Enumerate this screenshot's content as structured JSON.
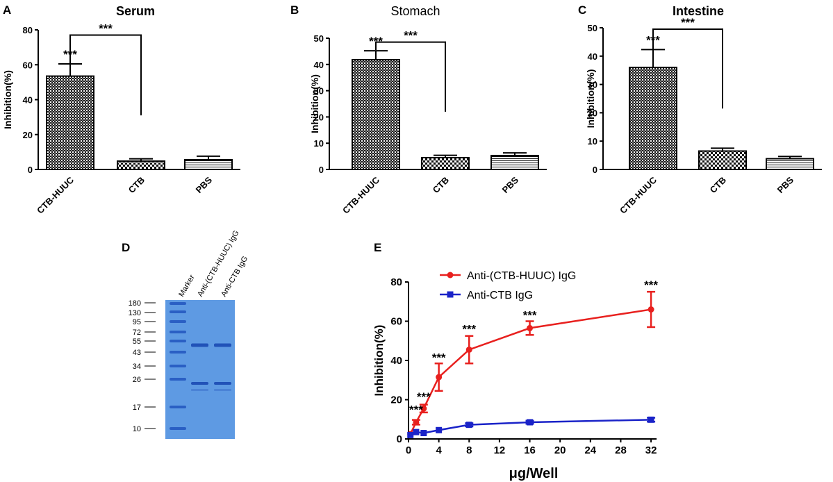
{
  "colors": {
    "red_series": "#e8201e",
    "blue_series": "#1a23c8",
    "gel_bg": "#5e9ae3",
    "band": "#2a5fc4"
  },
  "panel_letters": {
    "A": "A",
    "B": "B",
    "C": "C",
    "D": "D",
    "E": "E"
  },
  "chart_data": [
    {
      "panel": "A",
      "type": "bar",
      "title": "Serum",
      "title_bold": true,
      "ylabel": "Inhibition(%)",
      "xlabel": "",
      "ylim": [
        0,
        80
      ],
      "yticks": [
        0,
        20,
        40,
        60,
        80
      ],
      "categories": [
        "CTB-HUUC",
        "CTB",
        "PBS"
      ],
      "values": [
        53.5,
        4.8,
        5.6
      ],
      "errors": [
        7,
        1.3,
        2.0
      ],
      "patterns": [
        "crosshatch",
        "checker",
        "hlines"
      ],
      "annotations": [
        {
          "text": "***",
          "type": "above-bar",
          "category": "CTB-HUUC"
        },
        {
          "text": "***",
          "type": "bracket",
          "from": "CTB-HUUC",
          "to": "CTB",
          "start_y": 60.5,
          "top_y": 77,
          "end_y": 31
        }
      ]
    },
    {
      "panel": "B",
      "type": "bar",
      "title": "Stomach",
      "title_bold": false,
      "ylabel": "Inhibition(%)",
      "xlabel": "",
      "ylim": [
        0,
        50
      ],
      "yticks": [
        0,
        10,
        20,
        30,
        40,
        50
      ],
      "categories": [
        "CTB-HUUC",
        "CTB",
        "PBS"
      ],
      "values": [
        41.8,
        4.5,
        5.3
      ],
      "errors": [
        3.4,
        0.9,
        1.0
      ],
      "patterns": [
        "crosshatch",
        "checker",
        "hlines"
      ],
      "annotations": [
        {
          "text": "***",
          "type": "above-bar",
          "category": "CTB-HUUC"
        },
        {
          "text": "***",
          "type": "bracket",
          "from": "CTB-HUUC",
          "to": "CTB",
          "start_y": 45.5,
          "top_y": 48.5,
          "end_y": 22
        }
      ]
    },
    {
      "panel": "C",
      "type": "bar",
      "title": "Intestine",
      "title_bold": true,
      "ylabel": "Inhibition(%)",
      "xlabel": "",
      "ylim": [
        0,
        50
      ],
      "yticks": [
        0,
        10,
        20,
        30,
        40,
        50
      ],
      "categories": [
        "CTB-HUUC",
        "CTB",
        "PBS"
      ],
      "values": [
        36,
        6.5,
        3.8
      ],
      "errors": [
        6.3,
        1.0,
        0.8
      ],
      "patterns": [
        "crosshatch",
        "checker",
        "hlines"
      ],
      "annotations": [
        {
          "text": "***",
          "type": "above-bar",
          "category": "CTB-HUUC"
        },
        {
          "text": "***",
          "type": "bracket",
          "from": "CTB-HUUC",
          "to": "CTB",
          "start_y": 42.5,
          "top_y": 49.5,
          "end_y": 21.5
        }
      ]
    },
    {
      "panel": "E",
      "type": "line",
      "title": "",
      "ylabel": "Inhibition(%)",
      "xlabel": "μg/Well",
      "xlim": [
        0,
        33
      ],
      "ylim": [
        0,
        80
      ],
      "xticks": [
        0,
        4,
        8,
        12,
        16,
        20,
        24,
        28,
        32
      ],
      "yticks": [
        0,
        20,
        40,
        60,
        80
      ],
      "legend_position": "top-left",
      "series": [
        {
          "name": "Anti-(CTB-HUUC) IgG",
          "color": "#e8201e",
          "marker": "circle",
          "x": [
            0.25,
            1,
            2,
            4,
            8,
            16,
            32
          ],
          "y": [
            2.5,
            8.5,
            15.5,
            31.5,
            45.5,
            56.5,
            66
          ],
          "err": [
            0.5,
            1.2,
            2.0,
            7,
            7,
            3.5,
            9
          ]
        },
        {
          "name": "Anti-CTB IgG",
          "color": "#1a23c8",
          "marker": "square",
          "x": [
            0.25,
            1,
            2,
            4,
            8,
            16,
            32
          ],
          "y": [
            2.0,
            3.5,
            3.0,
            4.5,
            7.2,
            8.5,
            9.8
          ],
          "err": [
            0.3,
            0.6,
            0.4,
            0.5,
            0.8,
            0.8,
            1.0
          ]
        }
      ],
      "annotations": [
        {
          "text": "***",
          "x": 1,
          "y": 13
        },
        {
          "text": "***",
          "x": 2,
          "y": 19.5
        },
        {
          "text": "***",
          "x": 4,
          "y": 39.5
        },
        {
          "text": "***",
          "x": 8,
          "y": 54
        },
        {
          "text": "***",
          "x": 16,
          "y": 61
        },
        {
          "text": "***",
          "x": 32,
          "y": 76.5
        }
      ]
    }
  ],
  "gel": {
    "lane_labels": [
      "Marker",
      "Anti-(CTB-HUUC) IgG",
      "Anti-CTB IgG"
    ],
    "marker_kda": [
      "180",
      "130",
      "95",
      "72",
      "55",
      "43",
      "34",
      "26",
      "17",
      "10"
    ]
  }
}
